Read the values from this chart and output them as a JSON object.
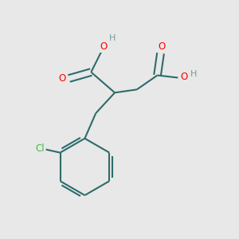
{
  "background_color": "#e8e8e8",
  "bond_color": "#2d6b6b",
  "O_color": "#ff0000",
  "Cl_color": "#44bb44",
  "H_color": "#7a9a9a",
  "figsize": [
    3.0,
    3.0
  ],
  "dpi": 100,
  "xlim": [
    -0.1,
    1.1
  ],
  "ylim": [
    -1.05,
    0.45
  ]
}
